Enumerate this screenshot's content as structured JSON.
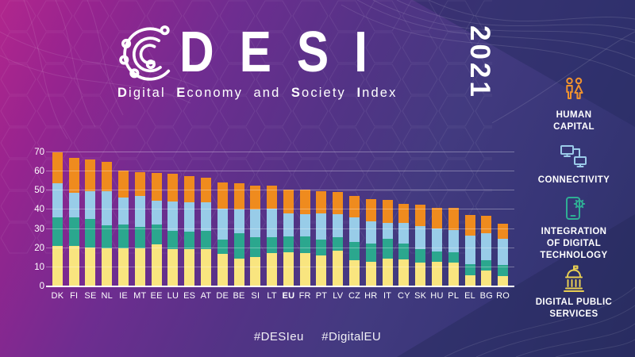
{
  "title": {
    "acronym": "DESI",
    "year": "2021",
    "subtitle": "Digital Economy and Society Index",
    "subtitle_segments": [
      {
        "text": "D",
        "bold": true
      },
      {
        "text": "igital ",
        "bold": false
      },
      {
        "text": "E",
        "bold": true
      },
      {
        "text": "conomy and ",
        "bold": false
      },
      {
        "text": "S",
        "bold": true
      },
      {
        "text": "ociety ",
        "bold": false
      },
      {
        "text": "I",
        "bold": true
      },
      {
        "text": "ndex",
        "bold": false
      }
    ]
  },
  "hashtags": [
    "#DESIeu",
    "#DigitalEU"
  ],
  "legend": [
    {
      "name": "Human Capital",
      "icon": "human-capital-icon",
      "color": "#f0922e",
      "label_lines": [
        "HUMAN",
        "CAPITAL"
      ]
    },
    {
      "name": "Connectivity",
      "icon": "connectivity-icon",
      "color": "#9bcbe9",
      "label_lines": [
        "CONNECTIVITY"
      ]
    },
    {
      "name": "Integration of Digital Technology",
      "icon": "integration-of-digital-technology-icon",
      "color": "#2fae94",
      "label_lines": [
        "INTEGRATION",
        "OF DIGITAL",
        "TECHNOLOGY"
      ]
    },
    {
      "name": "Digital Public Services",
      "icon": "digital-public-services-icon",
      "color": "#e9cf52",
      "label_lines": [
        "DIGITAL PUBLIC",
        "SERVICES"
      ]
    }
  ],
  "chart_data": {
    "type": "bar",
    "variant": "stacked",
    "title": "DESI 2021 country ranking",
    "stack_order": "bottom-to-top",
    "categories": [
      "DK",
      "FI",
      "SE",
      "NL",
      "IE",
      "MT",
      "EE",
      "LU",
      "ES",
      "AT",
      "DE",
      "BE",
      "SI",
      "LT",
      "EU",
      "FR",
      "PT",
      "LV",
      "CZ",
      "HR",
      "IT",
      "CY",
      "SK",
      "HU",
      "PL",
      "EL",
      "BG",
      "RO"
    ],
    "emphasized_category": "EU",
    "ylim": [
      0,
      70
    ],
    "yticks": [
      0,
      10,
      20,
      30,
      40,
      50,
      60,
      70
    ],
    "grid": true,
    "series": [
      {
        "key": "dps",
        "name": "Digital Public Services",
        "color": "#f9e57f",
        "values": [
          21.0,
          21.1,
          20.4,
          19.8,
          20.0,
          20.0,
          22.0,
          19.6,
          19.6,
          19.3,
          16.8,
          14.5,
          15.4,
          17.2,
          17.9,
          17.2,
          16.3,
          18.8,
          13.8,
          12.7,
          14.3,
          14.1,
          12.4,
          13.0,
          12.4,
          6.0,
          8.4,
          5.5
        ]
      },
      {
        "key": "idt",
        "name": "Integration of Digital Technology",
        "color": "#2ba78e",
        "values": [
          15.2,
          14.9,
          15.0,
          12.1,
          12.2,
          11.0,
          10.2,
          9.6,
          9.1,
          9.9,
          7.5,
          13.1,
          10.1,
          8.3,
          8.3,
          9.0,
          8.2,
          6.8,
          9.4,
          9.6,
          10.5,
          8.2,
          6.9,
          5.2,
          5.5,
          5.8,
          5.4,
          5.5
        ]
      },
      {
        "key": "conn",
        "name": "Connectivity",
        "color": "#98cce8",
        "values": [
          17.8,
          12.9,
          14.5,
          18.0,
          14.2,
          16.4,
          12.6,
          15.3,
          15.4,
          14.8,
          16.2,
          12.6,
          14.7,
          14.9,
          12.0,
          11.3,
          13.7,
          12.2,
          12.9,
          11.8,
          8.5,
          10.8,
          12.1,
          11.9,
          11.6,
          14.7,
          14.0,
          13.9
        ]
      },
      {
        "key": "hc",
        "name": "Human Capital",
        "color": "#ef8b1e",
        "values": [
          16.1,
          18.2,
          16.2,
          15.2,
          13.9,
          12.1,
          14.4,
          14.5,
          13.3,
          12.9,
          13.6,
          13.8,
          12.6,
          12.3,
          12.5,
          13.1,
          11.6,
          11.7,
          11.0,
          11.4,
          11.9,
          9.9,
          11.1,
          11.1,
          11.5,
          10.8,
          9.0,
          8.0
        ]
      }
    ],
    "totals": [
      70.1,
      67.1,
      66.1,
      65.1,
      60.3,
      59.5,
      59.2,
      59.0,
      57.4,
      56.9,
      54.1,
      54.0,
      52.8,
      52.7,
      50.7,
      50.6,
      49.8,
      49.5,
      47.1,
      45.5,
      45.2,
      43.0,
      42.5,
      41.2,
      41.0,
      37.3,
      36.8,
      32.9
    ]
  }
}
